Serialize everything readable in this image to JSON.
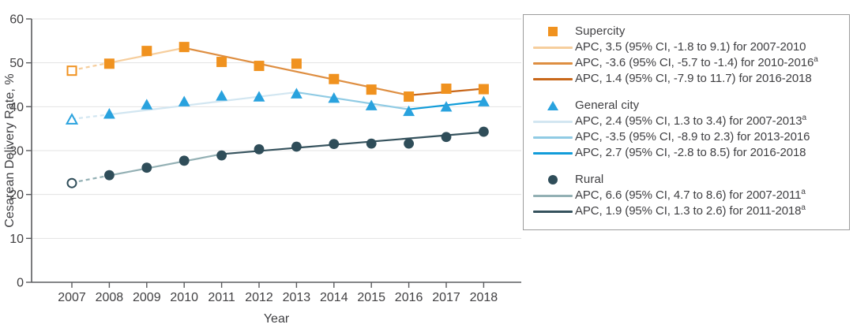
{
  "figure": {
    "ylabel": "Cesarean Delivery Rate, %",
    "xlabel": "Year"
  },
  "colors": {
    "grid": "#E3E3E3",
    "axis": "#5A5B5E",
    "text": "#414042",
    "legend_border": "#9C9C9C"
  },
  "chart_data": {
    "type": "line",
    "title": "",
    "xlabel": "Year",
    "ylabel": "Cesarean Delivery Rate, %",
    "x": [
      2007,
      2008,
      2009,
      2010,
      2011,
      2012,
      2013,
      2014,
      2015,
      2016,
      2017,
      2018
    ],
    "ylim": [
      0,
      60
    ],
    "yticks": [
      0,
      10,
      20,
      30,
      40,
      50,
      60
    ],
    "grid": true,
    "legend_position": "right",
    "footnote_marker": "a",
    "note": "2007 data points shown as open markers connected by dashed line; solid lines are joinpoint (APC) trend segments",
    "series": [
      {
        "name": "Supercity",
        "marker": "square",
        "color": "#F0921F",
        "first_point_open": true,
        "values": [
          48.2,
          49.8,
          52.7,
          53.6,
          50.2,
          49.3,
          49.8,
          46.3,
          43.9,
          42.3,
          44.1,
          44.0
        ],
        "trend": [
          [
            2007,
            48.3
          ],
          [
            2010,
            53.4
          ],
          [
            2016,
            42.6
          ],
          [
            2018,
            44.1
          ]
        ],
        "segments": [
          {
            "color": "#F6CE9D",
            "label": "APC, 3.5 (95% CI, -1.8 to 9.1) for 2007-2010",
            "sup": ""
          },
          {
            "color": "#DE8E41",
            "label": "APC, -3.6 (95% CI, -5.7 to -1.4) for 2010-2016",
            "sup": "a"
          },
          {
            "color": "#C8671A",
            "label": "APC, 1.4 (95% CI, -7.9 to 11.7) for 2016-2018",
            "sup": ""
          }
        ]
      },
      {
        "name": "General city",
        "marker": "triangle",
        "color": "#29A2DE",
        "first_point_open": true,
        "values": [
          37.1,
          38.4,
          40.5,
          41.2,
          42.5,
          42.3,
          43.0,
          42.0,
          40.3,
          39.0,
          40.0,
          41.2
        ],
        "trend": [
          [
            2007,
            37.2
          ],
          [
            2013,
            43.3
          ],
          [
            2016,
            39.4
          ],
          [
            2018,
            41.3
          ]
        ],
        "segments": [
          {
            "color": "#D2E6F1",
            "label": "APC, 2.4 (95% CI, 1.3 to 3.4) for 2007-2013",
            "sup": "a"
          },
          {
            "color": "#90CBE4",
            "label": "APC, -3.5 (95% CI, -8.9 to 2.3) for 2013-2016",
            "sup": ""
          },
          {
            "color": "#119CD9",
            "label": "APC, 2.7 (95% CI, -2.8 to 8.5) for 2016-2018",
            "sup": ""
          }
        ]
      },
      {
        "name": "Rural",
        "marker": "circle",
        "color": "#2F4D59",
        "first_point_open": true,
        "values": [
          22.6,
          24.4,
          26.1,
          27.7,
          28.9,
          30.3,
          30.9,
          31.5,
          31.6,
          31.6,
          33.1,
          34.3
        ],
        "trend": [
          [
            2007,
            22.7
          ],
          [
            2011,
            29.2
          ],
          [
            2018,
            34.2
          ]
        ],
        "segments": [
          {
            "color": "#93B0B4",
            "label": "APC, 6.6 (95% CI, 4.7 to 8.6) for 2007-2011",
            "sup": "a"
          },
          {
            "color": "#35525D",
            "label": "APC, 1.9 (95% CI, 1.3 to 2.6) for 2011-2018",
            "sup": "a"
          }
        ]
      }
    ]
  }
}
